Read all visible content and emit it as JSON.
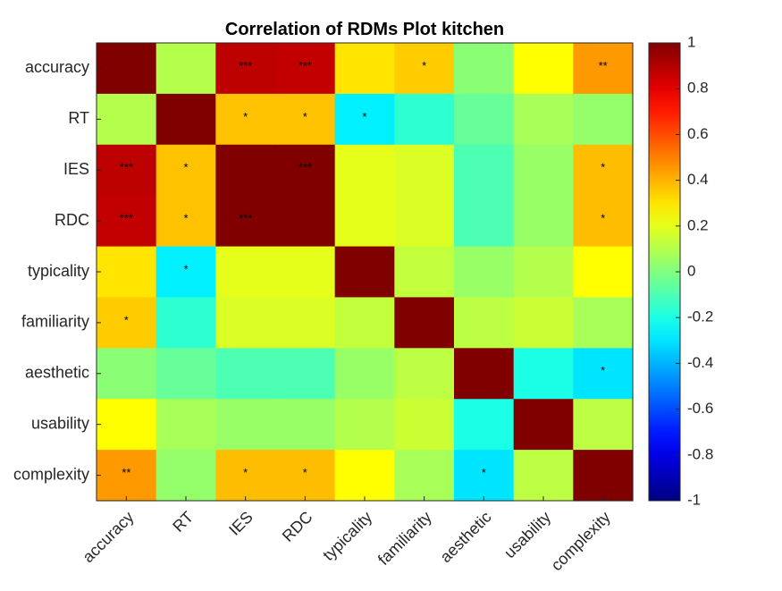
{
  "chart_data": {
    "type": "heatmap",
    "title": "Correlation of RDMs Plot kitchen",
    "xlabel": "",
    "ylabel": "",
    "labels": [
      "accuracy",
      "RT",
      "IES",
      "RDC",
      "typicality",
      "familiarity",
      "aesthetic",
      "usability",
      "complexity"
    ],
    "values": [
      [
        1.0,
        0.1,
        0.88,
        0.87,
        0.3,
        0.35,
        0.02,
        0.25,
        0.45
      ],
      [
        0.1,
        1.0,
        0.37,
        0.37,
        -0.28,
        -0.16,
        -0.05,
        0.08,
        0.04
      ],
      [
        0.88,
        0.37,
        1.0,
        1.0,
        0.2,
        0.18,
        -0.1,
        0.05,
        0.38
      ],
      [
        0.87,
        0.37,
        1.0,
        1.0,
        0.2,
        0.18,
        -0.1,
        0.05,
        0.38
      ],
      [
        0.3,
        -0.28,
        0.2,
        0.2,
        1.0,
        0.13,
        0.05,
        0.1,
        0.25
      ],
      [
        0.35,
        -0.16,
        0.18,
        0.18,
        0.13,
        1.0,
        0.12,
        0.15,
        0.08
      ],
      [
        0.02,
        -0.05,
        -0.1,
        -0.1,
        0.05,
        0.12,
        1.0,
        -0.2,
        -0.3
      ],
      [
        0.25,
        0.08,
        0.05,
        0.05,
        0.1,
        0.15,
        -0.2,
        1.0,
        0.12
      ],
      [
        0.45,
        0.04,
        0.38,
        0.38,
        0.25,
        0.08,
        -0.3,
        0.12,
        1.0
      ]
    ],
    "significance": [
      [
        "",
        "",
        "***",
        "***",
        "",
        "*",
        "",
        "",
        "**"
      ],
      [
        "",
        "",
        "*",
        "*",
        "*",
        "",
        "",
        "",
        ""
      ],
      [
        "***",
        "*",
        "",
        "***",
        "",
        "",
        "",
        "",
        "*"
      ],
      [
        "***",
        "*",
        "***",
        "",
        "",
        "",
        "",
        "",
        "*"
      ],
      [
        "",
        "*",
        "",
        "",
        "",
        "",
        "",
        "",
        ""
      ],
      [
        "*",
        "",
        "",
        "",
        "",
        "",
        "",
        "",
        ""
      ],
      [
        "",
        "",
        "",
        "",
        "",
        "",
        "",
        "",
        "*"
      ],
      [
        "",
        "",
        "",
        "",
        "",
        "",
        "",
        "",
        ""
      ],
      [
        "**",
        "",
        "*",
        "*",
        "",
        "",
        "*",
        "",
        ""
      ]
    ],
    "colorbar": {
      "range": [
        -1,
        1
      ],
      "ticks": [
        "1",
        "0.8",
        "0.6",
        "0.4",
        "0.2",
        "0",
        "-0.2",
        "-0.4",
        "-0.6",
        "-0.8",
        "-1"
      ],
      "colormap": "jet"
    },
    "grid": false,
    "legend": "colorbar-right"
  }
}
